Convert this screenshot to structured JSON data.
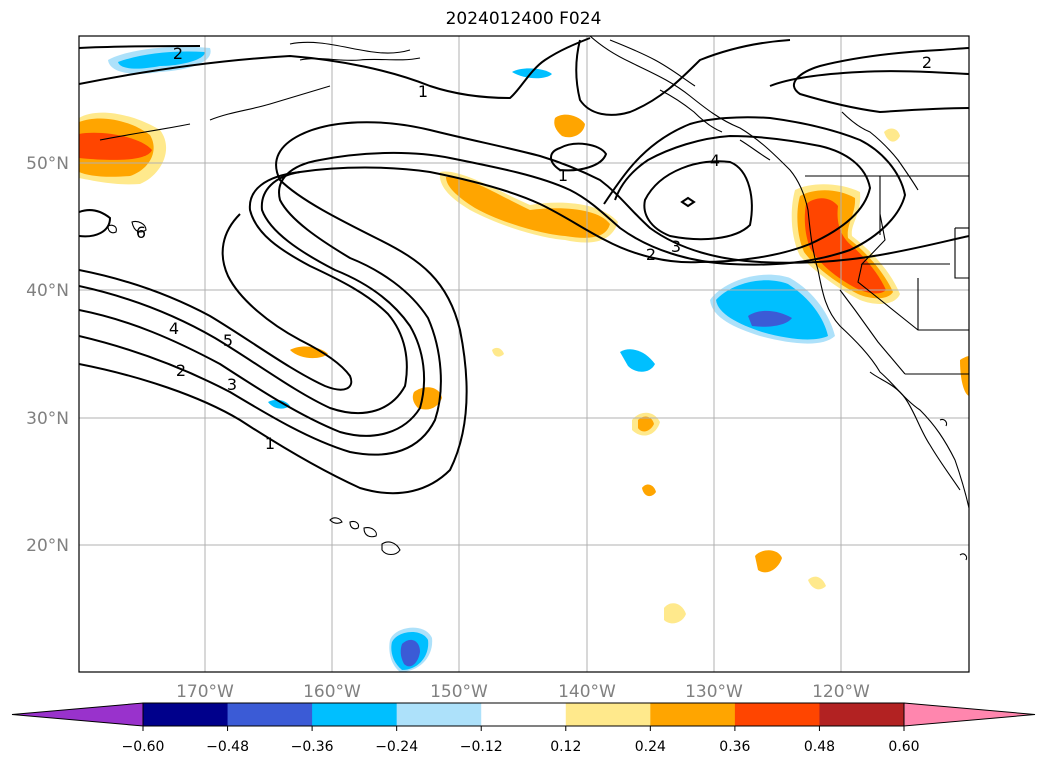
{
  "map": {
    "title": "2024012400 F024",
    "lat_labels": [
      {
        "text": "50°N",
        "lat": 50
      },
      {
        "text": "40°N",
        "lat": 40
      },
      {
        "text": "30°N",
        "lat": 30
      },
      {
        "text": "20°N",
        "lat": 20
      }
    ],
    "lon_labels": [
      {
        "text": "170°W",
        "lon": -170
      },
      {
        "text": "160°W",
        "lon": -160
      },
      {
        "text": "150°W",
        "lon": -150
      },
      {
        "text": "140°W",
        "lon": -140
      },
      {
        "text": "130°W",
        "lon": -130
      },
      {
        "text": "120°W",
        "lon": -120
      }
    ],
    "extent": {
      "lon_min": -180,
      "lon_max": -110,
      "lat_min": 10,
      "lat_max": 60
    },
    "contour_labels": [
      "1",
      "2",
      "3",
      "4",
      "5",
      "6"
    ]
  },
  "colorbar": {
    "ticks": [
      "−0.60",
      "−0.48",
      "−0.36",
      "−0.24",
      "−0.12",
      "0.12",
      "0.24",
      "0.36",
      "0.48",
      "0.60"
    ],
    "colors": [
      "#9932CC",
      "#00008B",
      "#3B5BD6",
      "#00BFFF",
      "#ADE1FA",
      "#FFFFFF",
      "#FFE98C",
      "#FFA500",
      "#FF4500",
      "#B22222",
      "#FF86AE"
    ]
  }
}
